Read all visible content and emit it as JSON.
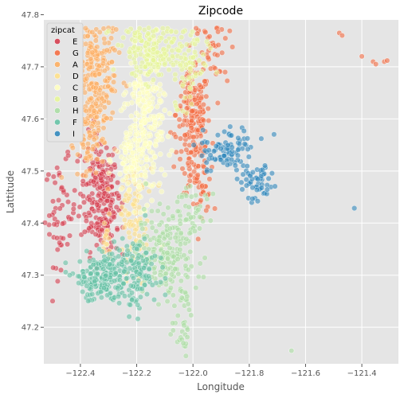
{
  "chart_data": {
    "type": "scatter",
    "title": "Zipcode",
    "xlabel": "Longitude",
    "ylabel": "Lattitude",
    "xlim": [
      -122.53,
      -121.27
    ],
    "ylim": [
      47.13,
      47.79
    ],
    "xticks": [
      -122.4,
      -122.2,
      -122.0,
      -121.8,
      -121.6,
      -121.4
    ],
    "xtick_labels": [
      "−122.4",
      "−122.2",
      "−122.0",
      "−121.8",
      "−121.6",
      "−121.4"
    ],
    "yticks": [
      47.2,
      47.3,
      47.4,
      47.5,
      47.6,
      47.7,
      47.8
    ],
    "ytick_labels": [
      "47.2",
      "47.3",
      "47.4",
      "47.5",
      "47.6",
      "47.7",
      "47.8"
    ],
    "grid": true,
    "legend_title": "zipcat",
    "legend_position": "top-left",
    "series": [
      {
        "name": "E",
        "color": "#d53e4f",
        "clusters": [
          {
            "x": -122.33,
            "y": 47.46,
            "sx": 0.035,
            "sy": 0.055,
            "n": 190
          },
          {
            "x": -122.305,
            "y": 47.4,
            "sx": 0.02,
            "sy": 0.03,
            "n": 50
          },
          {
            "x": -122.47,
            "y": 47.42,
            "sx": 0.028,
            "sy": 0.05,
            "n": 55
          }
        ]
      },
      {
        "name": "G",
        "color": "#f46d43",
        "clusters": [
          {
            "x": -122.0,
            "y": 47.61,
            "sx": 0.03,
            "sy": 0.04,
            "n": 150
          },
          {
            "x": -121.99,
            "y": 47.53,
            "sx": 0.025,
            "sy": 0.035,
            "n": 60
          },
          {
            "x": -121.97,
            "y": 47.47,
            "sx": 0.02,
            "sy": 0.025,
            "n": 30
          },
          {
            "x": -121.93,
            "y": 47.72,
            "sx": 0.03,
            "sy": 0.04,
            "n": 40
          }
        ]
      },
      {
        "name": "A",
        "color": "#fdae61",
        "clusters": [
          {
            "x": -122.36,
            "y": 47.68,
            "sx": 0.045,
            "sy": 0.06,
            "n": 260
          },
          {
            "x": -122.37,
            "y": 47.56,
            "sx": 0.03,
            "sy": 0.04,
            "n": 60
          }
        ]
      },
      {
        "name": "D",
        "color": "#fee08b",
        "clusters": [
          {
            "x": -122.21,
            "y": 47.41,
            "sx": 0.025,
            "sy": 0.05,
            "n": 90
          },
          {
            "x": -122.305,
            "y": 47.37,
            "sx": 0.012,
            "sy": 0.02,
            "n": 15
          }
        ]
      },
      {
        "name": "C",
        "color": "#ffffbf",
        "clusters": [
          {
            "x": -122.17,
            "y": 47.59,
            "sx": 0.035,
            "sy": 0.07,
            "n": 230
          },
          {
            "x": -122.22,
            "y": 47.52,
            "sx": 0.03,
            "sy": 0.04,
            "n": 80
          }
        ]
      },
      {
        "name": "B",
        "color": "#e6f598",
        "clusters": [
          {
            "x": -122.15,
            "y": 47.73,
            "sx": 0.05,
            "sy": 0.03,
            "n": 160
          },
          {
            "x": -122.03,
            "y": 47.7,
            "sx": 0.04,
            "sy": 0.04,
            "n": 80
          }
        ]
      },
      {
        "name": "H",
        "color": "#abdda4",
        "clusters": [
          {
            "x": -122.1,
            "y": 47.35,
            "sx": 0.05,
            "sy": 0.04,
            "n": 170
          },
          {
            "x": -122.04,
            "y": 47.24,
            "sx": 0.02,
            "sy": 0.05,
            "n": 55
          },
          {
            "x": -122.0,
            "y": 47.42,
            "sx": 0.03,
            "sy": 0.03,
            "n": 35
          }
        ]
      },
      {
        "name": "F",
        "color": "#66c2a5",
        "clusters": [
          {
            "x": -122.32,
            "y": 47.3,
            "sx": 0.05,
            "sy": 0.028,
            "n": 200
          },
          {
            "x": -122.2,
            "y": 47.3,
            "sx": 0.035,
            "sy": 0.03,
            "n": 110
          }
        ]
      },
      {
        "name": "I",
        "color": "#3288bd",
        "clusters": [
          {
            "x": -121.87,
            "y": 47.54,
            "sx": 0.045,
            "sy": 0.022,
            "n": 90
          },
          {
            "x": -121.77,
            "y": 47.48,
            "sx": 0.03,
            "sy": 0.02,
            "n": 50
          },
          {
            "x": -121.71,
            "y": 47.57,
            "sx": 0.005,
            "sy": 0.005,
            "n": 1
          },
          {
            "x": -121.42,
            "y": 47.43,
            "sx": 0.003,
            "sy": 0.003,
            "n": 1
          }
        ]
      }
    ],
    "outliers": [
      {
        "series": "G",
        "x": -121.48,
        "y": 47.765
      },
      {
        "series": "G",
        "x": -121.47,
        "y": 47.76
      },
      {
        "series": "G",
        "x": -121.4,
        "y": 47.72
      },
      {
        "series": "G",
        "x": -121.36,
        "y": 47.71
      },
      {
        "series": "G",
        "x": -121.35,
        "y": 47.705
      },
      {
        "series": "G",
        "x": -121.32,
        "y": 47.71
      },
      {
        "series": "G",
        "x": -121.31,
        "y": 47.712
      },
      {
        "series": "H",
        "x": -121.65,
        "y": 47.155
      }
    ]
  }
}
